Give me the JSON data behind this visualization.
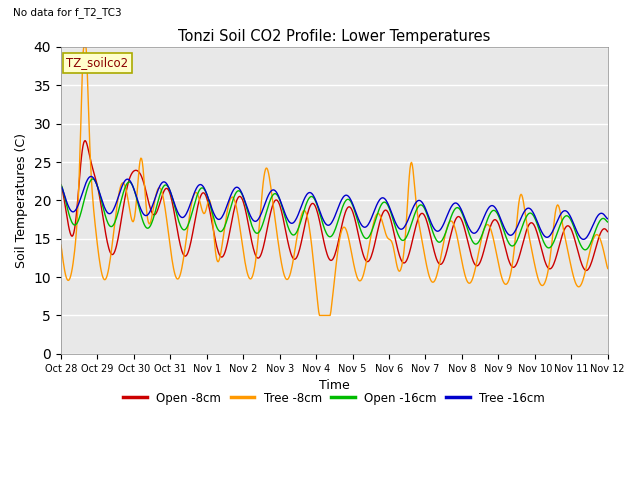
{
  "title": "Tonzi Soil CO2 Profile: Lower Temperatures",
  "subtitle": "No data for f_T2_TC3",
  "xlabel": "Time",
  "ylabel": "Soil Temperatures (C)",
  "ylim": [
    0,
    40
  ],
  "yticks": [
    0,
    5,
    10,
    15,
    20,
    25,
    30,
    35,
    40
  ],
  "legend_label": "TZ_soilco2",
  "legend_entries": [
    "Open -8cm",
    "Tree -8cm",
    "Open -16cm",
    "Tree -16cm"
  ],
  "legend_colors": [
    "#cc0000",
    "#ff9900",
    "#00bb00",
    "#0000cc"
  ],
  "plot_bg": "#e8e8e8",
  "fig_bg": "#ffffff",
  "grid_color": "#ffffff",
  "tick_labels": [
    "Oct 28",
    "Oct 29",
    "Oct 30",
    "Oct 31",
    "Nov 1",
    "Nov 2",
    "Nov 3",
    "Nov 4",
    "Nov 5",
    "Nov 6",
    "Nov 7",
    "Nov 8",
    "Nov 9",
    "Nov 10",
    "Nov 11",
    "Nov 12"
  ],
  "n_points": 720,
  "days": 15
}
